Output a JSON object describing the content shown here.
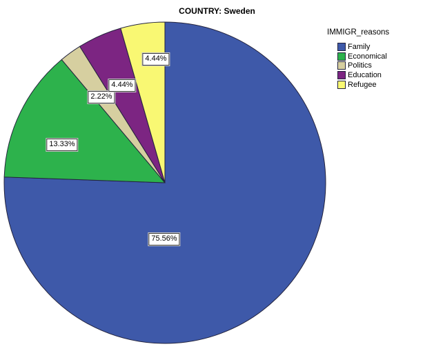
{
  "title": "COUNTRY: Sweden",
  "legend": {
    "title": "IMMIGR_reasons"
  },
  "chart_data": {
    "type": "pie",
    "title": "COUNTRY: Sweden",
    "legend_title": "IMMIGR_reasons",
    "legend_position": "right",
    "start_angle": "12 o'clock",
    "direction": "clockwise",
    "unit": "%",
    "categories": [
      "Family",
      "Economical",
      "Politics",
      "Education",
      "Refugee"
    ],
    "values": [
      75.56,
      13.33,
      2.22,
      4.44,
      4.44
    ],
    "outline_color": "#23233c",
    "background_color": "#ffffff",
    "slices": [
      {
        "legend_label": "Family",
        "value": 75.56,
        "label_text": "75.56%",
        "color": "#3E59A9"
      },
      {
        "legend_label": "Economical",
        "value": 13.33,
        "label_text": "13.33%",
        "color": "#2DB24C"
      },
      {
        "legend_label": "Politics",
        "value": 2.22,
        "label_text": "2.22%",
        "color": "#D6CFA0"
      },
      {
        "legend_label": "Education",
        "value": 4.44,
        "label_text": "4.44%",
        "color": "#7C2582"
      },
      {
        "legend_label": "Refugee",
        "value": 4.44,
        "label_text": "4.44%",
        "color": "#F9F873"
      }
    ]
  }
}
